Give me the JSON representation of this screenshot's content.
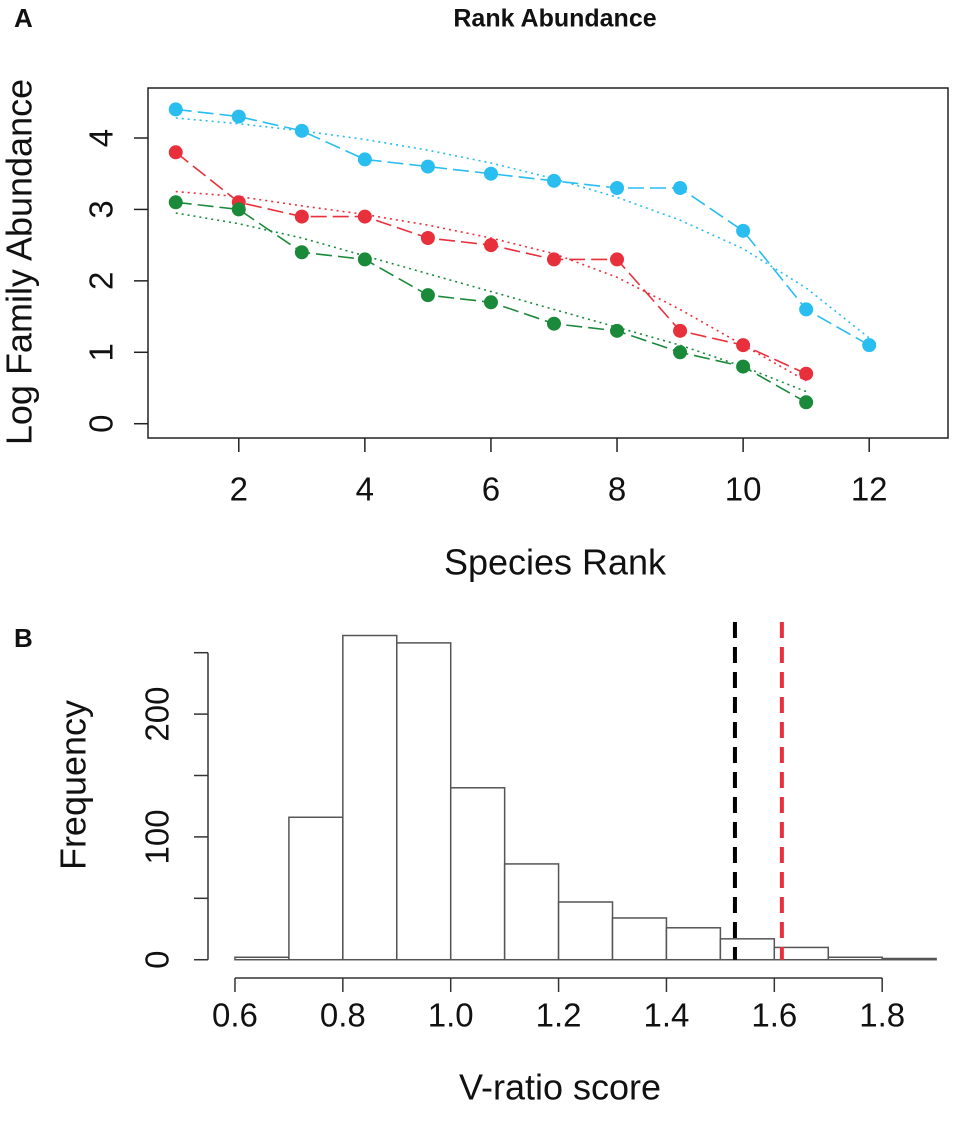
{
  "chart_data": [
    {
      "type": "line",
      "panel": "A",
      "title": "Rank Abundance",
      "xlabel": "Species Rank",
      "ylabel": "Log Family Abundance",
      "x": [
        1,
        2,
        3,
        4,
        5,
        6,
        7,
        8,
        9,
        10,
        11,
        12
      ],
      "series": [
        {
          "color": "#29bdf0",
          "style": "dashed",
          "values": [
            4.4,
            4.3,
            4.1,
            3.7,
            3.6,
            3.5,
            3.4,
            3.3,
            3.3,
            2.7,
            1.6,
            1.1
          ]
        },
        {
          "color": "#e8303c",
          "style": "dashed",
          "values": [
            3.8,
            3.1,
            2.9,
            2.9,
            2.6,
            2.5,
            2.3,
            2.3,
            1.3,
            1.1,
            0.7,
            null
          ]
        },
        {
          "color": "#1a8a3a",
          "style": "dashed",
          "values": [
            3.1,
            3.0,
            2.4,
            2.3,
            1.8,
            1.7,
            1.4,
            1.3,
            1.0,
            0.8,
            0.3,
            null
          ]
        },
        {
          "color": "#29bdf0",
          "style": "dotted",
          "values": [
            4.28,
            4.2,
            4.1,
            3.98,
            3.83,
            3.65,
            3.43,
            3.17,
            2.85,
            2.45,
            1.9,
            1.2
          ]
        },
        {
          "color": "#e8303c",
          "style": "dotted",
          "values": [
            3.25,
            3.18,
            3.05,
            2.93,
            2.78,
            2.6,
            2.38,
            2.05,
            1.6,
            1.1,
            0.6,
            null
          ]
        },
        {
          "color": "#1a8a3a",
          "style": "dotted",
          "values": [
            2.95,
            2.8,
            2.6,
            2.35,
            2.1,
            1.85,
            1.6,
            1.35,
            1.1,
            0.8,
            0.45,
            null
          ]
        }
      ],
      "xlim": [
        0.56,
        13.25
      ],
      "ylim": [
        -0.2,
        4.7
      ],
      "xticks": [
        2,
        4,
        6,
        8,
        10,
        12
      ],
      "yticks": [
        0,
        1,
        2,
        3,
        4
      ]
    },
    {
      "type": "histogram",
      "panel": "B",
      "xlabel": "V-ratio score",
      "ylabel": "Frequency",
      "bins": [
        0.6,
        0.7,
        0.8,
        0.9,
        1.0,
        1.1,
        1.2,
        1.3,
        1.4,
        1.5,
        1.6,
        1.7,
        1.8,
        1.9
      ],
      "counts": [
        2,
        116,
        264,
        258,
        140,
        78,
        47,
        34,
        26,
        17,
        10,
        2,
        1
      ],
      "color": "#ffffff",
      "vlines": [
        {
          "x": 1.527,
          "color": "#000000"
        },
        {
          "x": 1.614,
          "color": "#e8303c"
        }
      ],
      "xlim": [
        0.55,
        1.935
      ],
      "ylim": [
        -10,
        275
      ],
      "xticks": [
        0.6,
        0.8,
        {
          "value": 1.0,
          "label": "1.0"
        },
        1.2,
        1.4,
        1.6,
        1.8
      ],
      "yticks": [
        0,
        50,
        100,
        150,
        200,
        250
      ],
      "ytick_label_every": 2
    }
  ]
}
